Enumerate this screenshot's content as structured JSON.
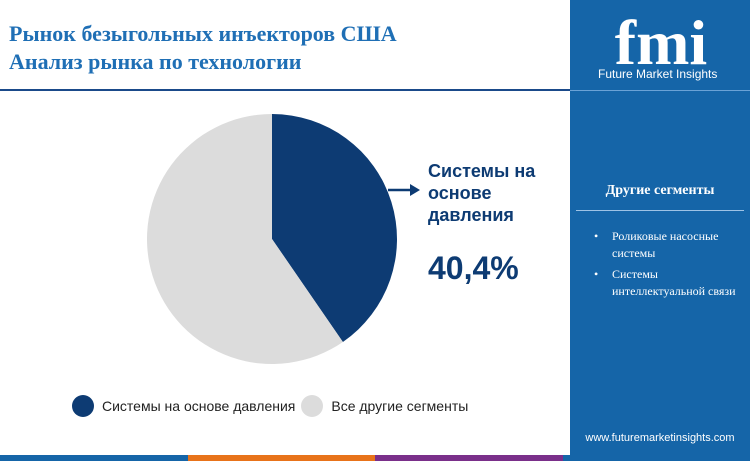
{
  "header": {
    "title_line1": "Рынок безыгольных инъекторов США",
    "title_line2": "Анализ рынка по технологии"
  },
  "chart_data": {
    "type": "pie",
    "slices": [
      {
        "name": "Системы на основе давления",
        "value": 40.4,
        "color": "#0d3b73"
      },
      {
        "name": "Все другие сегменты",
        "value": 59.6,
        "color": "#dcdcdc"
      }
    ],
    "callout": {
      "label": "Системы на основе давления",
      "value": "40,4%"
    },
    "legend": [
      "Системы на основе давления",
      "Все другие сегменты"
    ],
    "legend_position": "bottom"
  },
  "sidebar": {
    "brand": "fmi",
    "tagline": "Future Market Insights",
    "section_title": "Другие сегменты",
    "items": [
      "Роликовые насосные системы",
      "Системы интеллектуальной связи"
    ],
    "url": "www.futuremarketinsights.com"
  },
  "colors": {
    "accent": "#1f6fb5",
    "dark": "#0d3b73",
    "sidebar": "#1565a8",
    "bar": [
      "#1565a8",
      "#e8731a",
      "#7a2f8a",
      "#1565a8"
    ]
  }
}
